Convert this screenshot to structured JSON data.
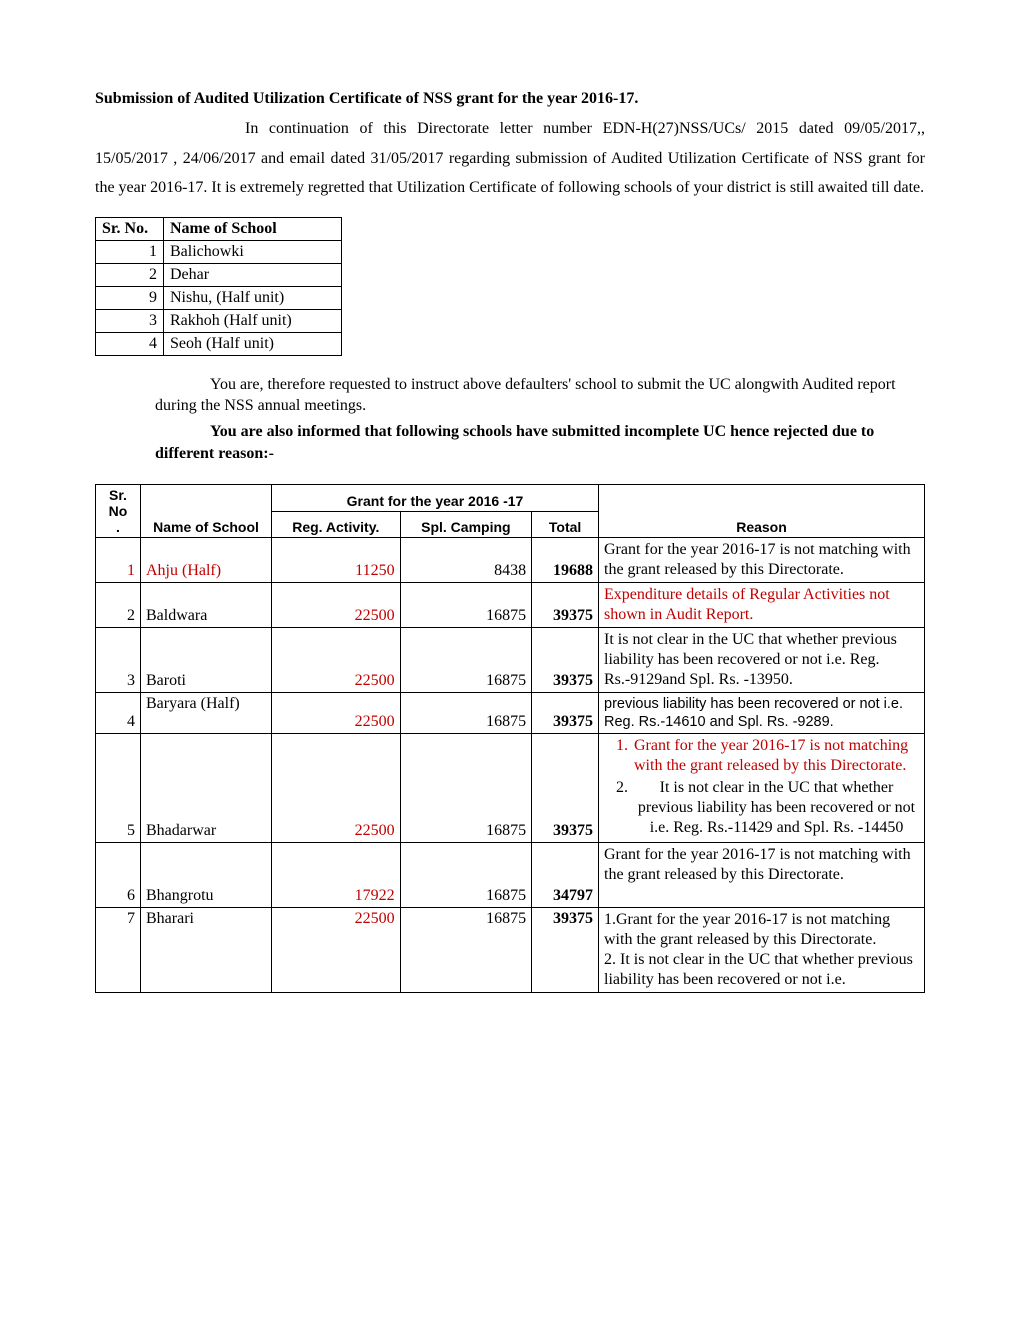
{
  "title": "Submission of Audited Utilization Certificate of NSS grant for the year 2016-17.",
  "para1": "In continuation of this Directorate letter number EDN-H(27)NSS/UCs/ 2015 dated 09/05/2017,, 15/05/2017 , 24/06/2017 and email dated 31/05/2017 regarding submission of Audited Utilization Certificate of NSS grant for the year 2016-17. It is extremely regretted that Utilization Certificate of following  schools of your district is still awaited till date.",
  "table1": {
    "headers": {
      "sr": "Sr. No.",
      "name": "Name of School"
    },
    "rows": [
      {
        "sr": "1",
        "name": "Balichowki"
      },
      {
        "sr": "2",
        "name": "Dehar"
      },
      {
        "sr": "9",
        "name": "Nishu, (Half unit)"
      },
      {
        "sr": "3",
        "name": "Rakhoh (Half unit)"
      },
      {
        "sr": "4",
        "name": "Seoh (Half unit)"
      }
    ]
  },
  "mid1": "You are, therefore requested to instruct above defaulters' school to submit the UC alongwith Audited report  during the NSS annual meetings.",
  "mid2": "You are also informed that following schools have submitted incomplete UC hence rejected due to different reason:-",
  "table2": {
    "headers": {
      "sr": "Sr. No.",
      "name": "Name of School",
      "grant": "Grant for the year 2016 -17",
      "reg": "Reg. Activity.",
      "spl": "Spl. Camping",
      "total": "Total",
      "reason": "Reason"
    },
    "rows": [
      {
        "sr": "1",
        "name": "Ahju (Half)",
        "reg": "11250",
        "spl": "8438",
        "total": "19688",
        "reason_plain": "Grant for the year 2016-17 is not matching with the grant released by this Directorate.",
        "sr_red": true,
        "name_red": true,
        "reg_red": true
      },
      {
        "sr": "2",
        "name": "Baldwara",
        "reg": "22500",
        "spl": "16875",
        "total": "39375",
        "reason_plain": "Expenditure details of Regular Activities not shown in Audit Report.",
        "reg_red": true,
        "reason_red": true
      },
      {
        "sr": "3",
        "name": "Baroti",
        "reg": "22500",
        "spl": "16875",
        "total": "39375",
        "reason_plain": "It is not clear in the UC that whether previous liability has been recovered or not i.e. Reg. Rs.-9129and Spl. Rs. -13950.",
        "reg_red": true
      },
      {
        "sr": "4",
        "name": "Baryara (Half)",
        "reg": "22500",
        "spl": "16875",
        "total": "39375",
        "reason_plain": "previous liability has been recovered or not i.e. Reg.  Rs.-14610 and Spl. Rs. -9289.",
        "reg_red": true,
        "name_top": true,
        "reason_arial": true
      },
      {
        "sr": "5",
        "name": "Bhadarwar",
        "reg": "22500",
        "spl": "16875",
        "total": "39375",
        "reason_list": [
          "Grant for the year 2016-17 is not matching with the grant released by this Directorate.",
          "It is not clear in the UC that whether previous liability has been recovered or not i.e. Reg.  Rs.-11429 and Spl. Rs. -14450"
        ],
        "li1_red": true,
        "reg_red": true
      },
      {
        "sr": "6",
        "name": "Bhangrotu",
        "reg": "17922",
        "spl": "16875",
        "total": "34797",
        "reason_plain": "Grant for the year 2016-17 is not matching with the grant released by this Directorate.",
        "reg_red": true,
        "reason_top": true
      },
      {
        "sr": "7",
        "name": "Bharari",
        "reg": "22500",
        "spl": "16875",
        "total": "39375",
        "reason_plain": "1.Grant for the year 2016-17 is not matching with the grant released by this Directorate.\n2. It is not clear in the UC that whether previous liability has been recovered or not i.e.",
        "reg_red": true,
        "top_align": true
      }
    ]
  }
}
